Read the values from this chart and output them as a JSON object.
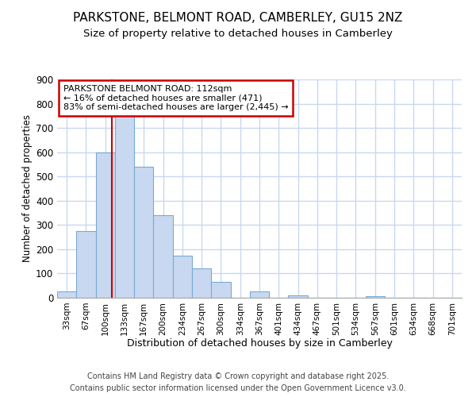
{
  "title_line1": "PARKSTONE, BELMONT ROAD, CAMBERLEY, GU15 2NZ",
  "title_line2": "Size of property relative to detached houses in Camberley",
  "xlabel": "Distribution of detached houses by size in Camberley",
  "ylabel": "Number of detached properties",
  "bar_color": "#c8d8f0",
  "bar_edge_color": "#7aaad4",
  "background_color": "#ffffff",
  "fig_background_color": "#ffffff",
  "grid_color": "#c8d8f0",
  "categories": [
    "33sqm",
    "67sqm",
    "100sqm",
    "133sqm",
    "167sqm",
    "200sqm",
    "234sqm",
    "267sqm",
    "300sqm",
    "334sqm",
    "367sqm",
    "401sqm",
    "434sqm",
    "467sqm",
    "501sqm",
    "534sqm",
    "567sqm",
    "601sqm",
    "634sqm",
    "668sqm",
    "701sqm"
  ],
  "values": [
    25,
    275,
    600,
    750,
    540,
    340,
    175,
    120,
    65,
    0,
    25,
    0,
    10,
    0,
    0,
    0,
    8,
    0,
    0,
    0,
    0
  ],
  "red_line_x": 2.33,
  "annotation_text": "PARKSTONE BELMONT ROAD: 112sqm\n← 16% of detached houses are smaller (471)\n83% of semi-detached houses are larger (2,445) →",
  "annotation_box_color": "#ffffff",
  "annotation_border_color": "#cc0000",
  "ylim": [
    0,
    900
  ],
  "yticks": [
    0,
    100,
    200,
    300,
    400,
    500,
    600,
    700,
    800,
    900
  ],
  "footer_line1": "Contains HM Land Registry data © Crown copyright and database right 2025.",
  "footer_line2": "Contains public sector information licensed under the Open Government Licence v3.0."
}
